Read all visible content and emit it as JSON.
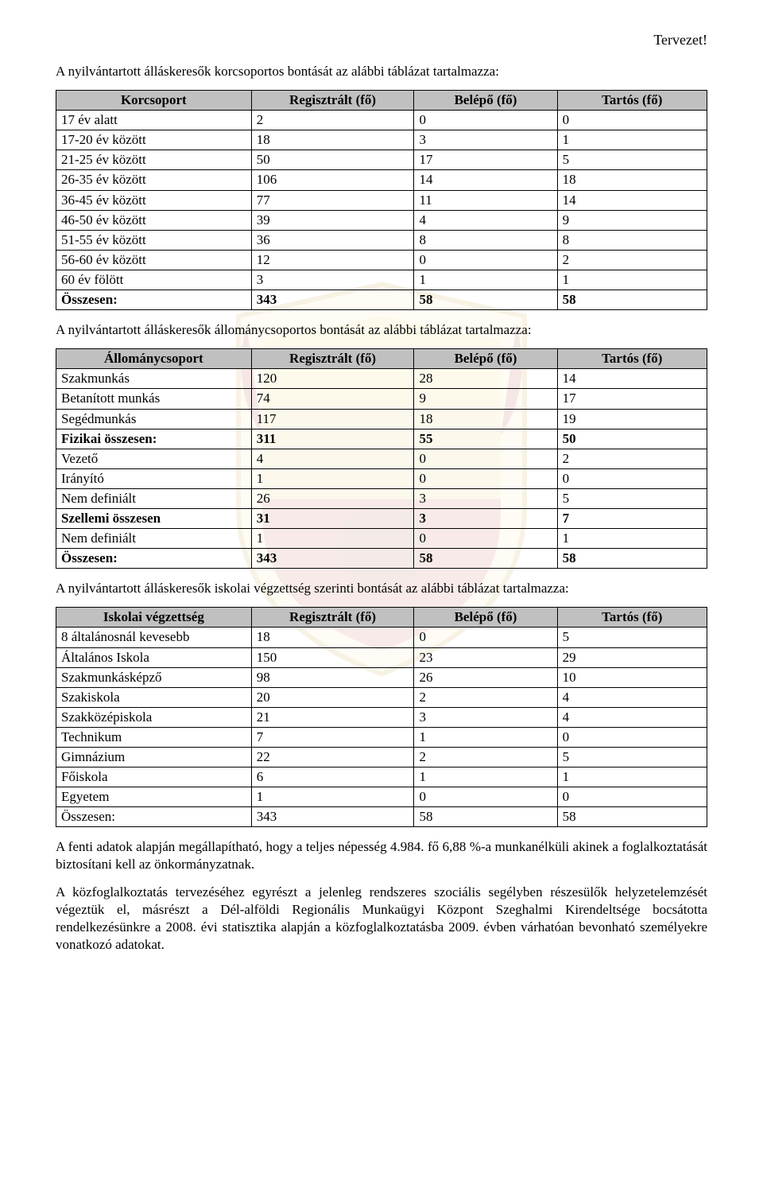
{
  "header": {
    "tervezet": "Tervezet!"
  },
  "sections": {
    "age": {
      "intro": "A nyilvántartott álláskeresők korcsoportos bontását az alábbi táblázat tartalmazza:",
      "columns": [
        "Korcsoport",
        "Regisztrált (fő)",
        "Belépő (fő)",
        "Tartós (fő)"
      ],
      "rows": [
        {
          "label": "17 év alatt",
          "r": "2",
          "b": "0",
          "t": "0",
          "bold": false
        },
        {
          "label": "17-20 év között",
          "r": "18",
          "b": "3",
          "t": "1",
          "bold": false
        },
        {
          "label": "21-25 év között",
          "r": "50",
          "b": "17",
          "t": "5",
          "bold": false
        },
        {
          "label": "26-35 év között",
          "r": "106",
          "b": "14",
          "t": "18",
          "bold": false
        },
        {
          "label": "36-45 év között",
          "r": "77",
          "b": "11",
          "t": "14",
          "bold": false
        },
        {
          "label": "46-50 év között",
          "r": "39",
          "b": "4",
          "t": "9",
          "bold": false
        },
        {
          "label": "51-55 év között",
          "r": "36",
          "b": "8",
          "t": "8",
          "bold": false
        },
        {
          "label": "56-60 év között",
          "r": "12",
          "b": "0",
          "t": "2",
          "bold": false
        },
        {
          "label": "60 év fölött",
          "r": "3",
          "b": "1",
          "t": "1",
          "bold": false
        },
        {
          "label": "Összesen:",
          "r": "343",
          "b": "58",
          "t": "58",
          "bold": true
        }
      ]
    },
    "group": {
      "intro": "A nyilvántartott álláskeresők állománycsoportos bontását az alábbi táblázat tartalmazza:",
      "columns": [
        "Állománycsoport",
        "Regisztrált (fő)",
        "Belépő (fő)",
        "Tartós (fő)"
      ],
      "rows": [
        {
          "label": "Szakmunkás",
          "r": "120",
          "b": "28",
          "t": "14",
          "bold": false
        },
        {
          "label": "Betanított munkás",
          "r": "74",
          "b": "9",
          "t": "17",
          "bold": false
        },
        {
          "label": "Segédmunkás",
          "r": "117",
          "b": "18",
          "t": "19",
          "bold": false
        },
        {
          "label": "Fizikai összesen:",
          "r": "311",
          "b": "55",
          "t": "50",
          "bold": true
        },
        {
          "label": "Vezető",
          "r": "4",
          "b": "0",
          "t": "2",
          "bold": false
        },
        {
          "label": "Irányító",
          "r": "1",
          "b": "0",
          "t": "0",
          "bold": false
        },
        {
          "label": "Nem definiált",
          "r": "26",
          "b": "3",
          "t": "5",
          "bold": false
        },
        {
          "label": "Szellemi összesen",
          "r": "31",
          "b": "3",
          "t": "7",
          "bold": true
        },
        {
          "label": "Nem definiált",
          "r": "1",
          "b": "0",
          "t": "1",
          "bold": false
        },
        {
          "label": "Összesen:",
          "r": "343",
          "b": "58",
          "t": "58",
          "bold": true
        }
      ]
    },
    "edu": {
      "intro": "A nyilvántartott álláskeresők iskolai végzettség szerinti bontását az alábbi táblázat tartalmazza:",
      "columns": [
        "Iskolai végzettség",
        "Regisztrált (fő)",
        "Belépő (fő)",
        "Tartós (fő)"
      ],
      "rows": [
        {
          "label": "8 általánosnál kevesebb",
          "r": "18",
          "b": "0",
          "t": "5",
          "bold": false
        },
        {
          "label": "Általános Iskola",
          "r": "150",
          "b": "23",
          "t": "29",
          "bold": false
        },
        {
          "label": "Szakmunkásképző",
          "r": "98",
          "b": "26",
          "t": "10",
          "bold": false
        },
        {
          "label": "Szakiskola",
          "r": "20",
          "b": "2",
          "t": "4",
          "bold": false
        },
        {
          "label": "Szakközépiskola",
          "r": "21",
          "b": "3",
          "t": "4",
          "bold": false
        },
        {
          "label": "Technikum",
          "r": "7",
          "b": "1",
          "t": "0",
          "bold": false
        },
        {
          "label": "Gimnázium",
          "r": "22",
          "b": "2",
          "t": "5",
          "bold": false
        },
        {
          "label": "Főiskola",
          "r": "6",
          "b": "1",
          "t": "1",
          "bold": false
        },
        {
          "label": "Egyetem",
          "r": "1",
          "b": "0",
          "t": "0",
          "bold": false
        },
        {
          "label": "Összesen:",
          "r": "343",
          "b": "58",
          "t": "58",
          "bold": false
        }
      ]
    }
  },
  "footer": {
    "p1": "A fenti adatok alapján megállapítható, hogy a teljes népesség 4.984. fő 6,88 %-a munkanélküli akinek a foglalkoztatását biztosítani kell az önkormányzatnak.",
    "p2": "A közfoglalkoztatás tervezéséhez egyrészt a jelenleg rendszeres szociális segélyben részesülők helyzetelemzését végeztük el, másrészt a Dél-alföldi Regionális Munkaügyi Központ Szeghalmi Kirendeltsége bocsátotta rendelkezésünkre a 2008. évi statisztika alapján a közfoglalkoztatásba 2009. évben várhatóan bevonható személyekre vonatkozó adatokat."
  },
  "style": {
    "header_bg": "#c0c0c0",
    "font": "Garamond, serif",
    "table_border": "#000000",
    "watermark_opacity": 0.1
  }
}
